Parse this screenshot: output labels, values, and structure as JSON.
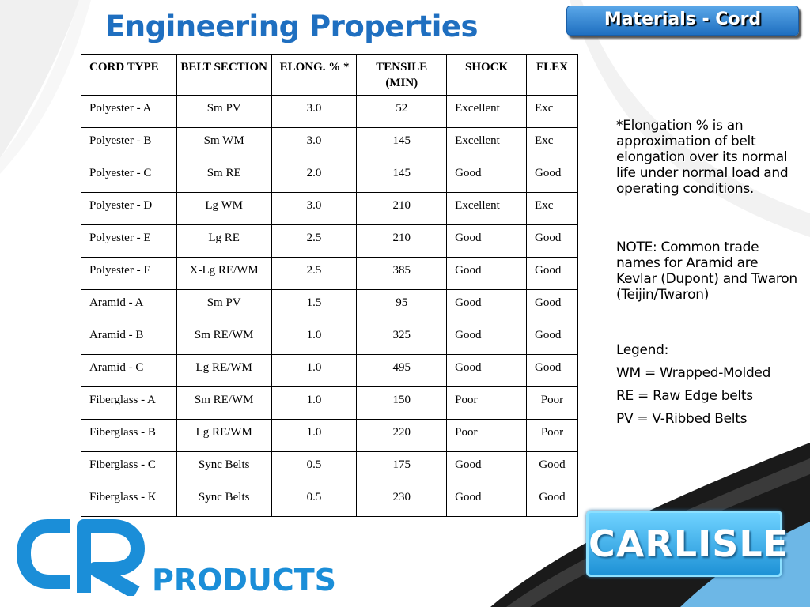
{
  "title": "Engineering Properties",
  "badge": "Materials - Cord",
  "colors": {
    "title": "#1f6fc0",
    "badge_top": "#5aa7e8",
    "badge_bottom": "#1f6fc0",
    "logo_blue": "#1b8ed8",
    "carlisle_blue": "#1e92d6",
    "swoosh_dark": "#1a1a1a"
  },
  "table": {
    "headers": [
      "CORD TYPE",
      "BELT SECTION",
      "ELONG. % *",
      "TENSILE (MIN)",
      "SHOCK",
      "FLEX"
    ],
    "rows": [
      [
        "Polyester - A",
        "Sm PV",
        "3.0",
        "52",
        "Excellent",
        "Exc"
      ],
      [
        "Polyester - B",
        "Sm WM",
        "3.0",
        "145",
        "Excellent",
        "Exc"
      ],
      [
        "Polyester - C",
        "Sm RE",
        "2.0",
        "145",
        "Good",
        "Good"
      ],
      [
        "Polyester - D",
        "Lg WM",
        "3.0",
        "210",
        "Excellent",
        "Exc"
      ],
      [
        "Polyester - E",
        "Lg RE",
        "2.5",
        "210",
        "Good",
        "Good"
      ],
      [
        "Polyester - F",
        "X-Lg RE/WM",
        "2.5",
        "385",
        "Good",
        "Good"
      ],
      [
        "Aramid - A",
        "Sm PV",
        "1.5",
        "95",
        "Good",
        "Good"
      ],
      [
        "Aramid - B",
        "Sm RE/WM",
        "1.0",
        "325",
        "Good",
        "Good"
      ],
      [
        "Aramid - C",
        "Lg RE/WM",
        "1.0",
        "495",
        "Good",
        "Good"
      ],
      [
        "Fiberglass - A",
        "Sm RE/WM",
        "1.0",
        "150",
        "Poor",
        "Poor"
      ],
      [
        "Fiberglass - B",
        "Lg RE/WM",
        "1.0",
        "220",
        "Poor",
        "Poor"
      ],
      [
        "Fiberglass - C",
        "Sync Belts",
        "0.5",
        "175",
        "Good",
        "Good"
      ],
      [
        "Fiberglass - K",
        "Sync Belts",
        "0.5",
        "230",
        "Good",
        "Good"
      ]
    ]
  },
  "notes": {
    "elongation": "*Elongation % is an approximation of belt elongation over its normal life under normal load and operating conditions.",
    "aramid": "NOTE: Common trade names for Aramid are Kevlar (Dupont) and Twaron (Teijin/Twaron)",
    "legend_title": "Legend:",
    "legend_items": [
      "WM = Wrapped-Molded",
      "RE = Raw Edge belts",
      "PV = V-Ribbed Belts"
    ]
  },
  "logo_cr": {
    "mark": "CR",
    "word": "PRODUCTS"
  },
  "logo_carlisle": "CARLISLE"
}
